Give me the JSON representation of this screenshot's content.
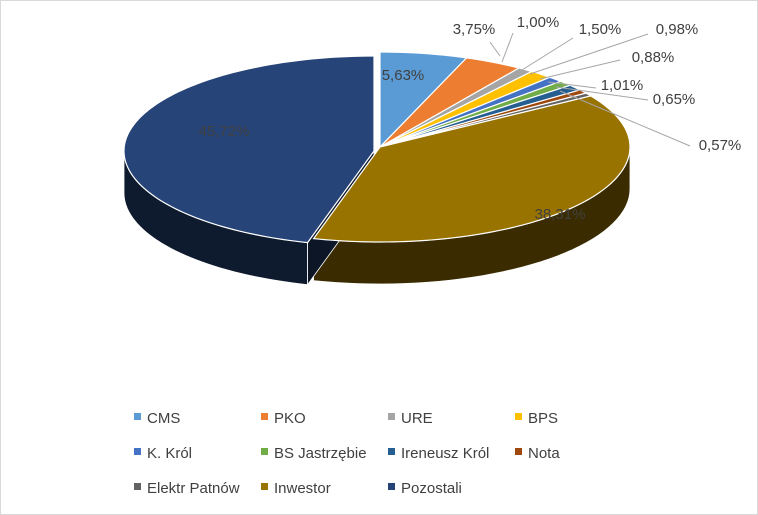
{
  "chart_data": {
    "type": "pie",
    "style": "3d-exploded-tilted",
    "legend_position": "bottom",
    "slices": [
      {
        "name": "CMS",
        "value": 5.63,
        "label": "5,63%",
        "color": "#5b9bd5"
      },
      {
        "name": "PKO",
        "value": 3.75,
        "label": "3,75%",
        "color": "#ed7d31"
      },
      {
        "name": "URE",
        "value": 1.0,
        "label": "1,00%",
        "color": "#a5a5a5"
      },
      {
        "name": "BPS",
        "value": 1.5,
        "label": "1,50%",
        "color": "#ffc000"
      },
      {
        "name": "K. Król",
        "value": 0.98,
        "label": "0,98%",
        "color": "#4472c4"
      },
      {
        "name": "BS Jastrzębie",
        "value": 0.88,
        "label": "0,88%",
        "color": "#70ad47"
      },
      {
        "name": "Ireneusz Król",
        "value": 1.01,
        "label": "1,01%",
        "color": "#255e91"
      },
      {
        "name": "Nota",
        "value": 0.65,
        "label": "0,65%",
        "color": "#9e480e"
      },
      {
        "name": "Elektr Patnów",
        "value": 0.57,
        "label": "0,57%",
        "color": "#636363"
      },
      {
        "name": "Inwestor",
        "value": 38.31,
        "label": "38,31%",
        "color": "#997300"
      },
      {
        "name": "Pozostali",
        "value": 45.72,
        "label": "45,72%",
        "color": "#264478"
      }
    ],
    "legend": [
      "CMS",
      "PKO",
      "URE",
      "BPS",
      "K. Król",
      "BS Jastrzębie",
      "Ireneusz Król",
      "Nota",
      "Elektr Patnów",
      "Inwestor",
      "Pozostali"
    ]
  }
}
